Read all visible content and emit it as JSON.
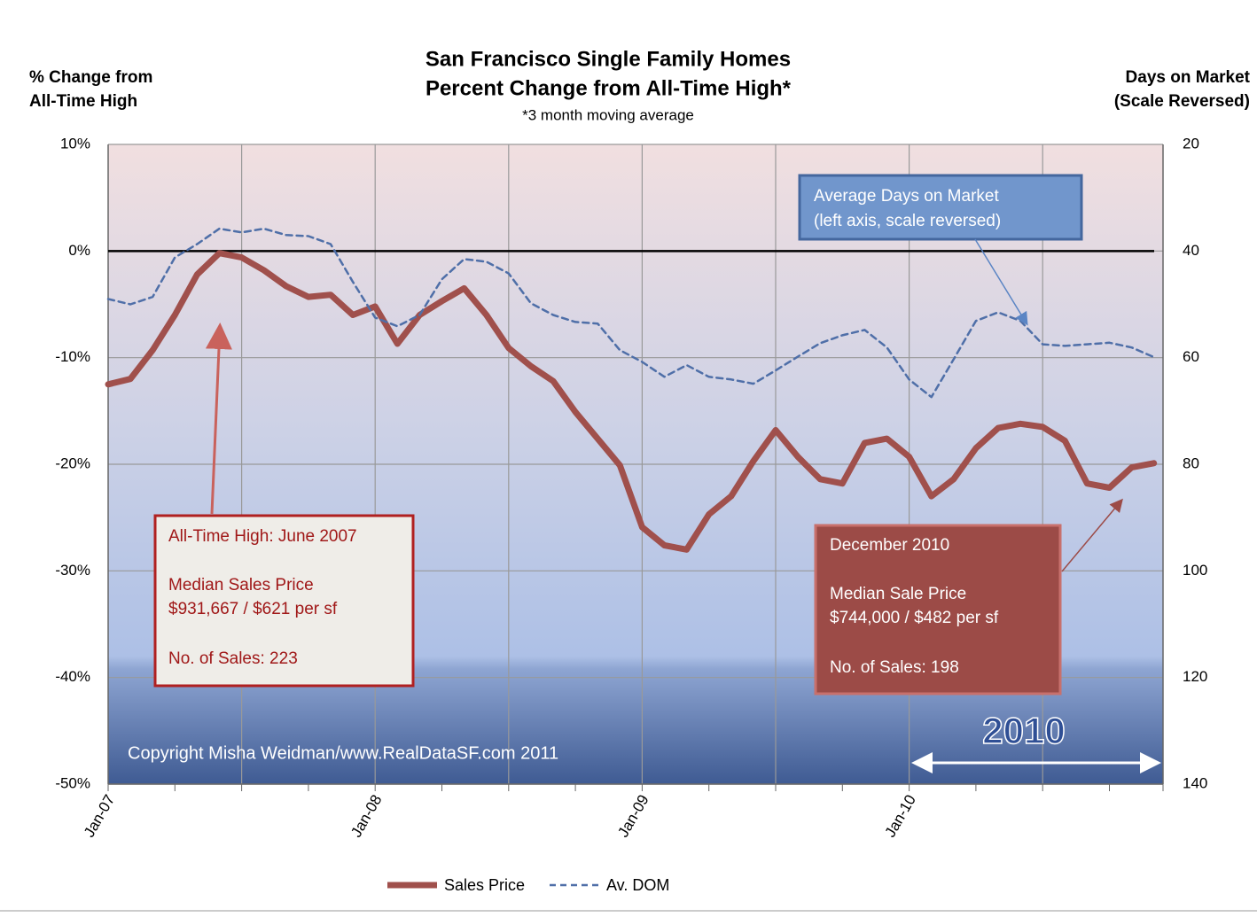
{
  "chart_data": {
    "type": "line",
    "title": [
      "San Francisco Single Family Homes",
      "Percent Change from All-Time High*"
    ],
    "subtitle": "*3 month moving average",
    "y_label": [
      "% Change from",
      "All-Time High"
    ],
    "y2_label": [
      "Days on Market",
      "(Scale Reversed)"
    ],
    "categories": [
      "Jan-07",
      null,
      null,
      null,
      null,
      null,
      null,
      null,
      null,
      null,
      null,
      null,
      "Jan-08",
      null,
      null,
      null,
      null,
      null,
      null,
      null,
      null,
      null,
      null,
      null,
      "Jan-09",
      null,
      null,
      null,
      null,
      null,
      null,
      null,
      null,
      null,
      null,
      null,
      "Jan-10",
      null,
      null,
      null,
      null,
      null,
      null,
      null,
      null,
      null,
      null,
      null
    ],
    "series": [
      {
        "name": "Sales Price",
        "color": "#a0504c",
        "values": [
          -12.5,
          -12,
          -9.3,
          -6,
          -2.2,
          -0.2,
          -0.6,
          -1.8,
          -3.3,
          -4.3,
          -4.1,
          -6,
          -5.2,
          -8.7,
          -6,
          -4.7,
          -3.5,
          -6,
          -9.1,
          -10.8,
          -12.2,
          -15.1,
          -17.6,
          -20.1,
          -25.9,
          -27.6,
          -28,
          -24.7,
          -23,
          -19.7,
          -16.8,
          -19.3,
          -21.4,
          -21.8,
          -18,
          -17.6,
          -19.3,
          -23,
          -21.4,
          -18.5,
          -16.6,
          -16.2,
          -16.5,
          -17.8,
          -21.8,
          -22.2,
          -20.3,
          -19.9
        ]
      },
      {
        "name": "Av. DOM",
        "color": "#4f6fa8",
        "axis": "y2",
        "values": [
          49,
          50,
          48.6,
          41.2,
          38.7,
          35.8,
          36.5,
          35.8,
          37,
          37.2,
          38.7,
          45.8,
          52.5,
          54.1,
          52,
          45.3,
          41.5,
          42,
          44.2,
          49.8,
          52,
          53.3,
          53.6,
          58.6,
          60.8,
          63.6,
          61.4,
          63.6,
          64.1,
          64.9,
          62.4,
          59.8,
          57.3,
          55.8,
          54.8,
          58.1,
          64.1,
          67.4,
          60.3,
          53.1,
          51.5,
          53.1,
          57.5,
          57.8,
          57.5,
          57.2,
          58.1,
          59.9
        ]
      }
    ],
    "ylim": [
      -50,
      10
    ],
    "yticks": [
      {
        "value": -50,
        "label": "-50%"
      },
      {
        "value": -40,
        "label": "-40%"
      },
      {
        "value": -30,
        "label": "-30%"
      },
      {
        "value": -20,
        "label": "-20%"
      },
      {
        "value": -10,
        "label": "-10%"
      },
      {
        "value": 0,
        "label": "0%"
      },
      {
        "value": 10,
        "label": "10%"
      }
    ],
    "y2lim": [
      20,
      140
    ],
    "y2ticks": [
      20,
      40,
      60,
      80,
      100,
      120,
      140
    ],
    "y2_reversed": true,
    "grid": true,
    "legend": "bottom",
    "annotations": [
      {
        "lines": [
          "All-Time High:  June 2007",
          "Median Sales Price",
          "$931,667 /  $621 per sf",
          "No. of Sales:  223"
        ]
      },
      {
        "lines": [
          "December  2010",
          "Median Sale Price",
          "$744,000 /  $482 per sf",
          "No. of  Sales:  198"
        ]
      },
      {
        "lines": [
          "Average Days on Market",
          "(left axis, scale reversed)"
        ]
      }
    ],
    "copyright": "Copyright Misha Weidman/www.RealDataSF.com 2011",
    "period_label": "2010"
  }
}
